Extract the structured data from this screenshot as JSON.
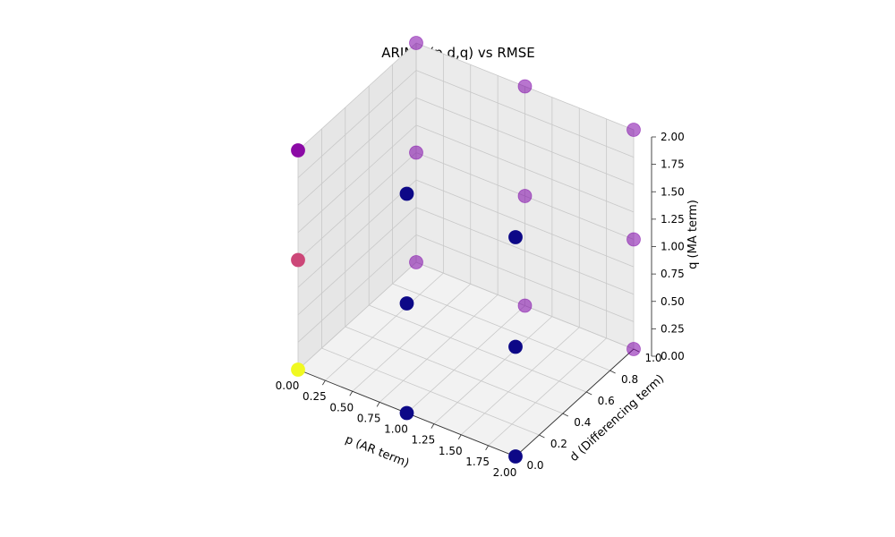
{
  "chart_data": {
    "type": "scatter",
    "title": "ARIMA (p,d,q) vs RMSE",
    "xlabel": "p (AR term)",
    "ylabel": "d (Differencing term)",
    "zlabel": "q (MA term)",
    "xlim": [
      0,
      2
    ],
    "ylim": [
      0,
      1
    ],
    "zlim": [
      0,
      2
    ],
    "xticks": [
      "0.00",
      "0.25",
      "0.50",
      "0.75",
      "1.00",
      "1.25",
      "1.50",
      "1.75",
      "2.00"
    ],
    "yticks": [
      "0.0",
      "0.2",
      "0.4",
      "0.6",
      "0.8",
      "1.0"
    ],
    "zticks": [
      "0.00",
      "0.25",
      "0.50",
      "0.75",
      "1.00",
      "1.25",
      "1.50",
      "1.75",
      "2.00"
    ],
    "grid": true,
    "colormap": "plasma",
    "points": [
      {
        "p": 0,
        "d": 0,
        "q": 0,
        "color": "#f0f921"
      },
      {
        "p": 0,
        "d": 0,
        "q": 1,
        "color": "#cc4778"
      },
      {
        "p": 0,
        "d": 0,
        "q": 2,
        "color": "#8b0aa5"
      },
      {
        "p": 1,
        "d": 0,
        "q": 0,
        "color": "#0d0887"
      },
      {
        "p": 1,
        "d": 0,
        "q": 1,
        "color": "#0d0887"
      },
      {
        "p": 1,
        "d": 0,
        "q": 2,
        "color": "#0d0887"
      },
      {
        "p": 2,
        "d": 0,
        "q": 0,
        "color": "#0d0887"
      },
      {
        "p": 2,
        "d": 0,
        "q": 1,
        "color": "#0d0887"
      },
      {
        "p": 2,
        "d": 0,
        "q": 2,
        "color": "#0d0887"
      },
      {
        "p": 0,
        "d": 1,
        "q": 0,
        "color": "#7e03a8"
      },
      {
        "p": 0,
        "d": 1,
        "q": 1,
        "color": "#7e03a8"
      },
      {
        "p": 0,
        "d": 1,
        "q": 2,
        "color": "#7e03a8"
      },
      {
        "p": 1,
        "d": 1,
        "q": 0,
        "color": "#7e03a8"
      },
      {
        "p": 1,
        "d": 1,
        "q": 1,
        "color": "#7e03a8"
      },
      {
        "p": 1,
        "d": 1,
        "q": 2,
        "color": "#7e03a8"
      },
      {
        "p": 2,
        "d": 1,
        "q": 0,
        "color": "#7e03a8"
      },
      {
        "p": 2,
        "d": 1,
        "q": 1,
        "color": "#7e03a8"
      },
      {
        "p": 2,
        "d": 1,
        "q": 2,
        "color": "#7e03a8"
      }
    ]
  }
}
